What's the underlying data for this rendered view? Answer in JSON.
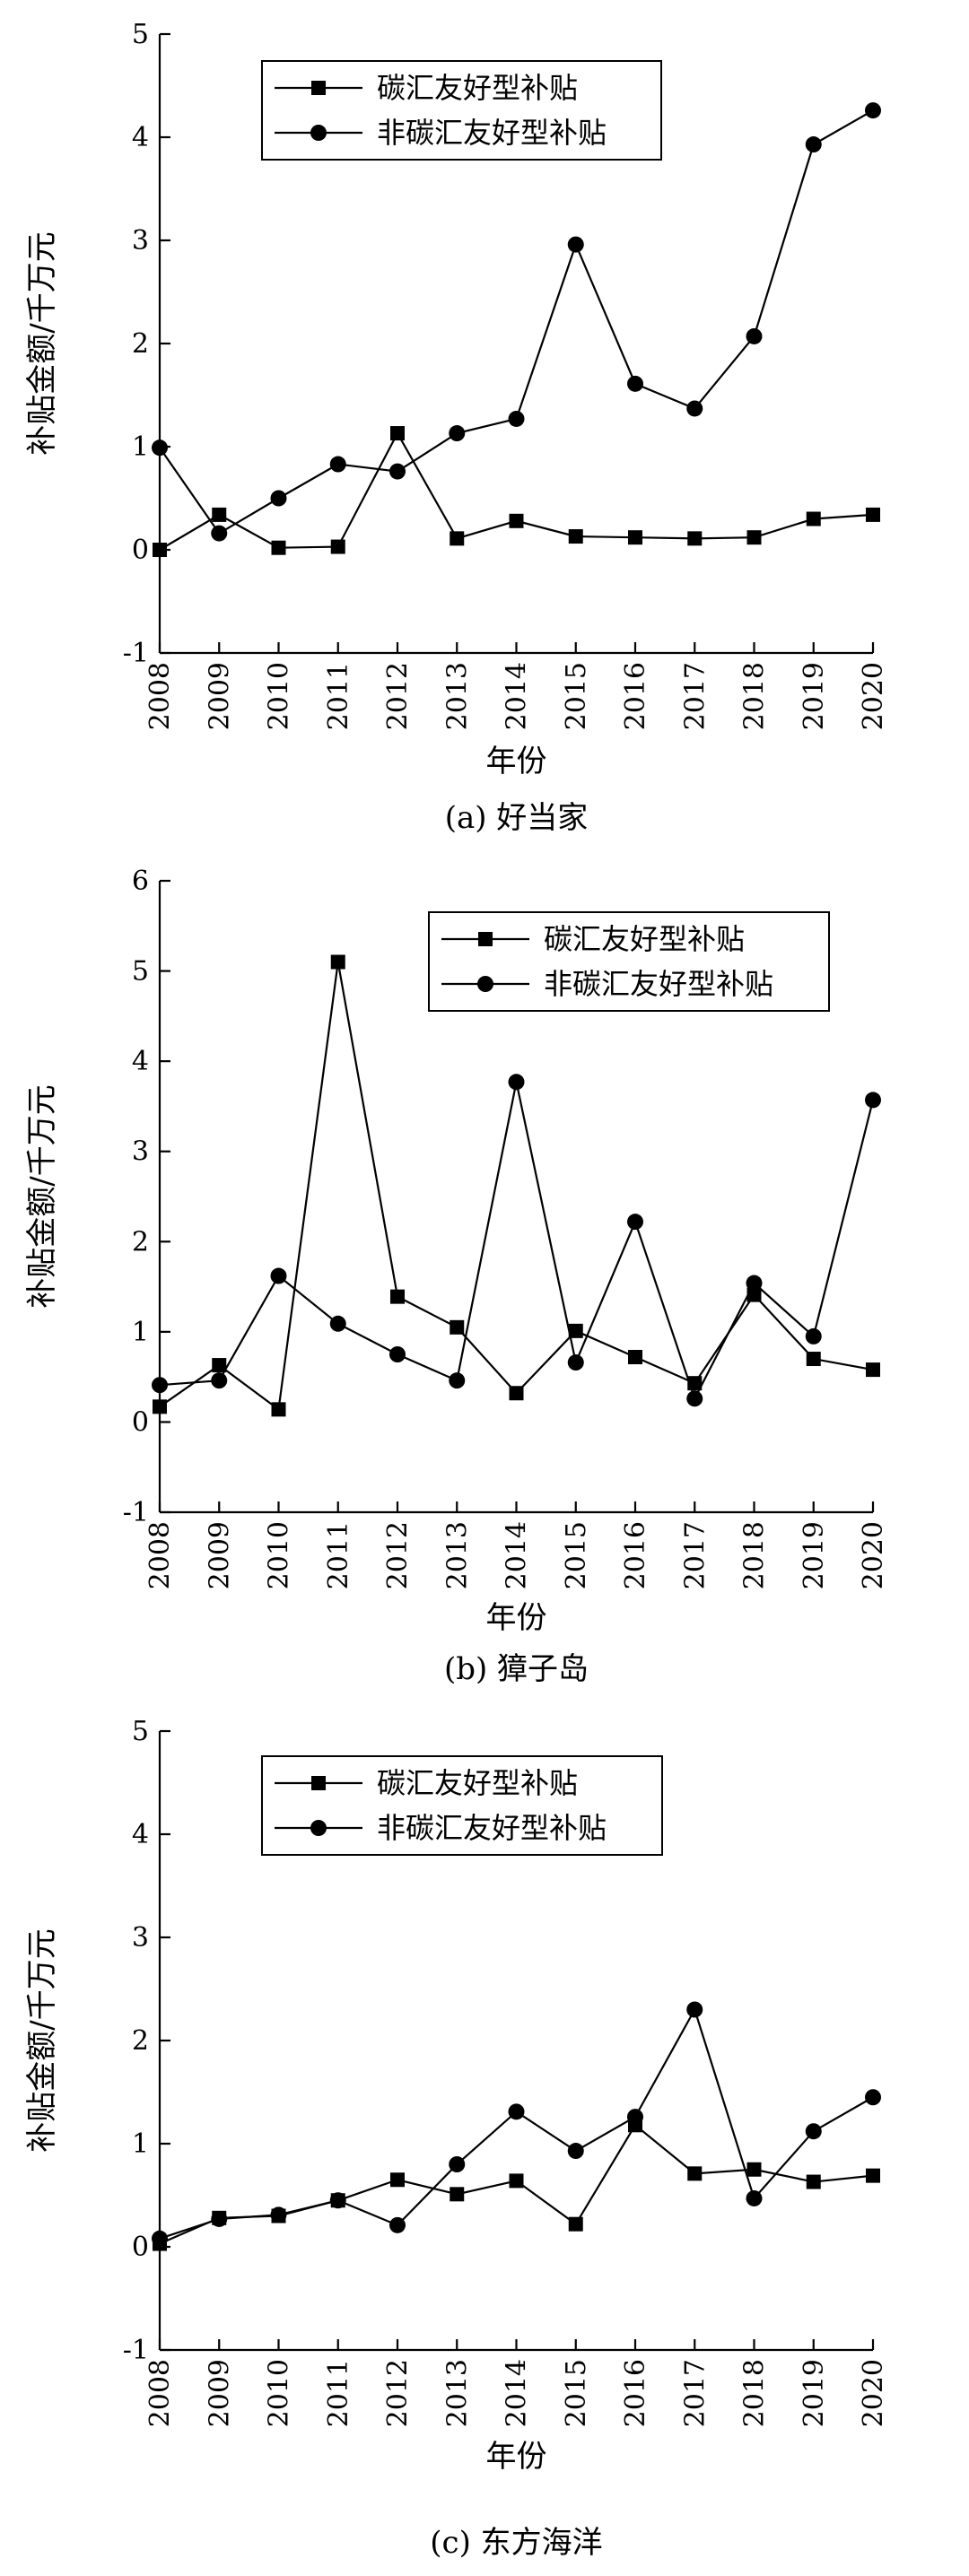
{
  "chart_data": [
    {
      "type": "line",
      "caption": "(a) 好当家",
      "xlabel": "年份",
      "ylabel": "补贴金额/千万元",
      "ylim": [
        -1,
        5
      ],
      "yticks": [
        -1,
        0,
        1,
        2,
        3,
        4,
        5
      ],
      "categories": [
        "2008",
        "2009",
        "2010",
        "2011",
        "2012",
        "2013",
        "2014",
        "2015",
        "2016",
        "2017",
        "2018",
        "2019",
        "2020"
      ],
      "legend_position": "top-center",
      "series": [
        {
          "name": "碳汇友好型补贴",
          "marker": "square",
          "values": [
            0.0,
            0.34,
            0.02,
            0.03,
            1.13,
            0.11,
            0.28,
            0.13,
            0.12,
            0.11,
            0.12,
            0.3,
            0.34
          ]
        },
        {
          "name": "非碳汇友好型补贴",
          "marker": "circle",
          "values": [
            0.99,
            0.16,
            0.5,
            0.83,
            0.76,
            1.13,
            1.27,
            2.96,
            1.61,
            1.37,
            2.07,
            3.93,
            4.26
          ]
        }
      ]
    },
    {
      "type": "line",
      "caption": "(b) 獐子岛",
      "xlabel": "年份",
      "ylabel": "补贴金额/千万元",
      "ylim": [
        -1,
        6
      ],
      "yticks": [
        -1,
        0,
        1,
        2,
        3,
        4,
        5,
        6
      ],
      "categories": [
        "2008",
        "2009",
        "2010",
        "2011",
        "2012",
        "2013",
        "2014",
        "2015",
        "2016",
        "2017",
        "2018",
        "2019",
        "2020"
      ],
      "legend_position": "top-right",
      "series": [
        {
          "name": "碳汇友好型补贴",
          "marker": "square",
          "values": [
            0.17,
            0.63,
            0.14,
            5.1,
            1.39,
            1.05,
            0.32,
            1.01,
            0.72,
            0.43,
            1.41,
            0.7,
            0.58
          ]
        },
        {
          "name": "非碳汇友好型补贴",
          "marker": "circle",
          "values": [
            0.41,
            0.46,
            1.62,
            1.09,
            0.75,
            0.46,
            3.77,
            0.66,
            2.22,
            0.26,
            1.54,
            0.95,
            3.57
          ]
        }
      ]
    },
    {
      "type": "line",
      "caption": "(c) 东方海洋",
      "xlabel": "年份",
      "ylabel": "补贴金额/千万元",
      "ylim": [
        -1,
        5
      ],
      "yticks": [
        -1,
        0,
        1,
        2,
        3,
        4,
        5
      ],
      "categories": [
        "2008",
        "2009",
        "2010",
        "2011",
        "2012",
        "2013",
        "2014",
        "2015",
        "2016",
        "2017",
        "2018",
        "2019",
        "2020"
      ],
      "legend_position": "top-center",
      "series": [
        {
          "name": "碳汇友好型补贴",
          "marker": "square",
          "values": [
            0.03,
            0.28,
            0.3,
            0.45,
            0.65,
            0.51,
            0.64,
            0.22,
            1.18,
            0.71,
            0.75,
            0.63,
            0.69
          ]
        },
        {
          "name": "非碳汇友好型补贴",
          "marker": "circle",
          "values": [
            0.08,
            0.27,
            0.31,
            0.45,
            0.21,
            0.8,
            1.31,
            0.93,
            1.26,
            2.3,
            0.47,
            1.12,
            1.45
          ]
        }
      ]
    }
  ]
}
